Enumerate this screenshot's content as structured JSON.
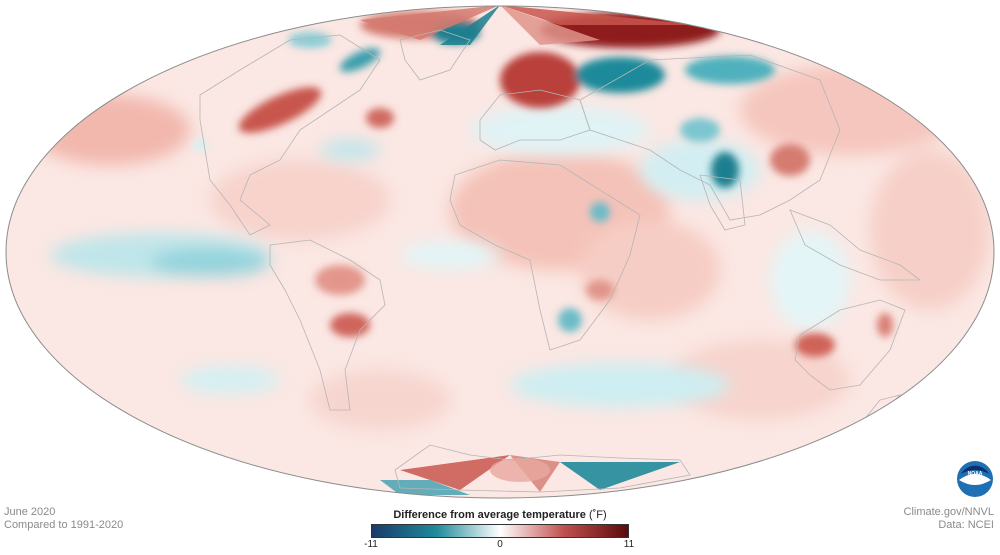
{
  "map": {
    "title": "Difference from average temperature",
    "projection": "Mollweide-like world map",
    "variable": "temperature anomaly",
    "palette": {
      "cold": "#1a3a6b",
      "cool": "#1f8a9a",
      "neutral": "#ffffff",
      "warm": "#c0504d",
      "hot": "#5a0a0a"
    },
    "coastline_color": "#b8b8b8",
    "outline_color": "#9a9a9a"
  },
  "footer": {
    "period": "June 2020",
    "baseline": "Compared to 1991-2020",
    "credit": "Climate.gov/NNVL",
    "source": "Data: NCEI"
  },
  "legend": {
    "title": "Difference from average temperature",
    "unit": "(˚F)",
    "min_label": "-11",
    "mid_label": "0",
    "max_label": "11",
    "min": -11,
    "max": 11
  },
  "logo": {
    "text": "NOAA",
    "icon": "noaa-logo-icon",
    "color": "#1f6fb5"
  }
}
